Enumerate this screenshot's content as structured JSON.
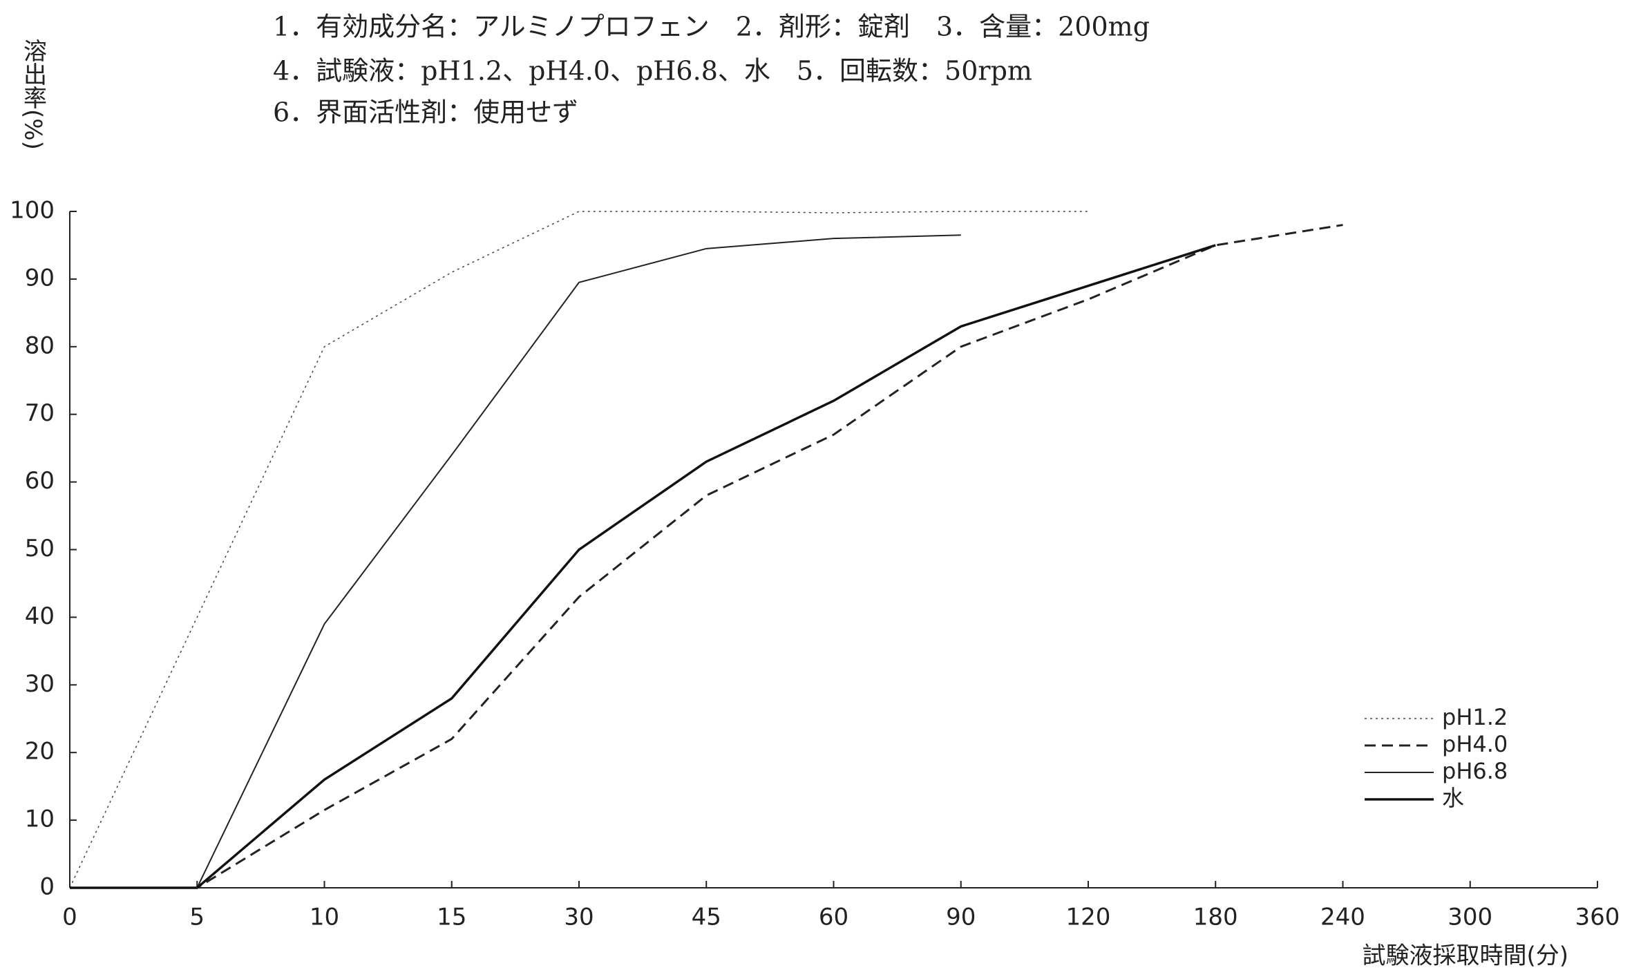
{
  "chart_data": {
    "type": "line",
    "title_lines": [
      "1．有効成分名：アルミノプロフェン　2．剤形：錠剤　3．含量：200mg",
      "4．試験液：pH1.2、pH4.0、pH6.8、水　5．回転数：50rpm",
      "6．界面活性剤：使用せず"
    ],
    "y_label": "溶出率(%)",
    "x_label": "試験液採取時間(分)",
    "categories": [
      "0",
      "5",
      "10",
      "15",
      "30",
      "45",
      "60",
      "90",
      "120",
      "180",
      "240",
      "300",
      "360"
    ],
    "series": [
      {
        "name": "pH1.2",
        "color": "#444",
        "dash": "dotted",
        "width": 1.5,
        "values": [
          0,
          40,
          80,
          91,
          100,
          100,
          99.8,
          100,
          100,
          null,
          null,
          null,
          null
        ]
      },
      {
        "name": "pH4.0",
        "color": "#222",
        "dash": "dashed",
        "width": 3,
        "values": [
          0,
          0,
          11.5,
          22,
          43,
          58,
          67,
          80,
          87,
          95,
          98,
          null,
          null
        ]
      },
      {
        "name": "pH6.8",
        "color": "#222",
        "dash": "solid",
        "width": 2,
        "values": [
          0,
          0,
          39,
          64,
          89.5,
          94.5,
          96,
          96.5,
          null,
          null,
          null,
          null,
          null
        ]
      },
      {
        "name": "水",
        "color": "#111",
        "dash": "solid",
        "width": 3.5,
        "values": [
          0,
          0,
          16,
          28,
          50,
          63,
          72,
          83,
          89,
          95,
          null,
          null,
          null
        ]
      }
    ],
    "ylim": [
      0,
      100
    ],
    "yticks": [
      0,
      10,
      20,
      30,
      40,
      50,
      60,
      70,
      80,
      90,
      100
    ],
    "legend": "lower right"
  }
}
